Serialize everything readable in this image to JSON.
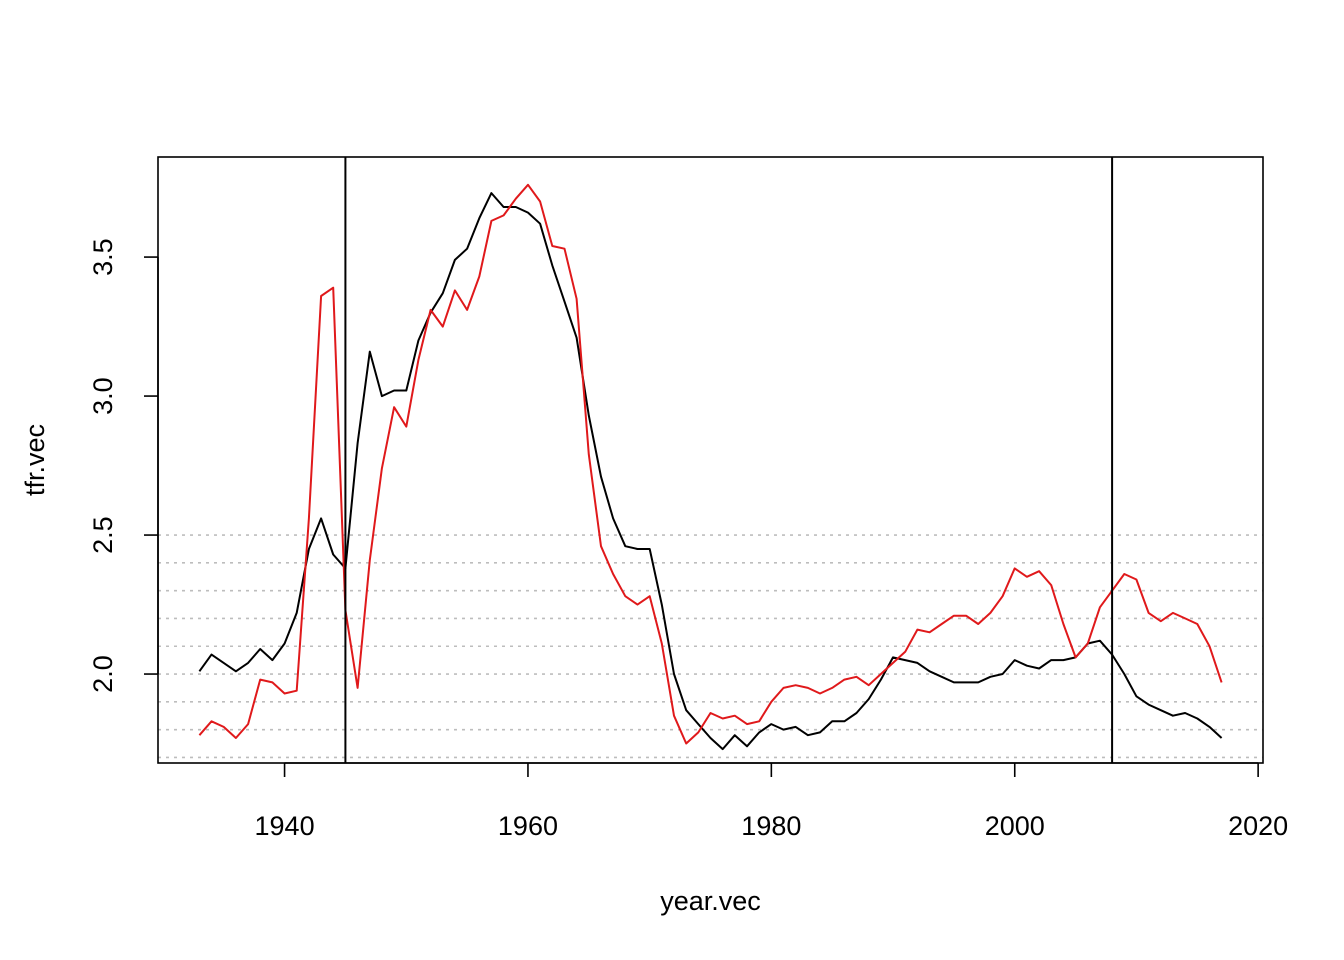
{
  "chart_data": {
    "type": "line",
    "title": "",
    "xlabel": "year.vec",
    "ylabel": "tfr.vec",
    "xlim": [
      1929.6,
      2020.4
    ],
    "ylim": [
      1.68,
      3.86
    ],
    "x_ticks": [
      1940,
      1960,
      1980,
      2000,
      2020
    ],
    "y_ticks": [
      2.0,
      2.5,
      3.0,
      3.5
    ],
    "x_tick_labels": [
      "1940",
      "1960",
      "1980",
      "2000",
      "2020"
    ],
    "y_tick_labels": [
      "2.0",
      "2.5",
      "3.0",
      "3.5"
    ],
    "hlines": [
      1.7,
      1.8,
      1.9,
      2.0,
      2.1,
      2.2,
      2.3,
      2.4,
      2.5
    ],
    "vlines": [
      1945,
      2008
    ],
    "grid": false,
    "x": [
      1933,
      1934,
      1935,
      1936,
      1937,
      1938,
      1939,
      1940,
      1941,
      1942,
      1943,
      1944,
      1945,
      1946,
      1947,
      1948,
      1949,
      1950,
      1951,
      1952,
      1953,
      1954,
      1955,
      1956,
      1957,
      1958,
      1959,
      1960,
      1961,
      1962,
      1963,
      1964,
      1965,
      1966,
      1967,
      1968,
      1969,
      1970,
      1971,
      1972,
      1973,
      1974,
      1975,
      1976,
      1977,
      1978,
      1979,
      1980,
      1981,
      1982,
      1983,
      1984,
      1985,
      1986,
      1987,
      1988,
      1989,
      1990,
      1991,
      1992,
      1993,
      1994,
      1995,
      1996,
      1997,
      1998,
      1999,
      2000,
      2001,
      2002,
      2003,
      2004,
      2005,
      2006,
      2007,
      2008,
      2009,
      2010,
      2011,
      2012,
      2013,
      2014,
      2015,
      2016,
      2017
    ],
    "series": [
      {
        "color": "#000000",
        "values": [
          2.01,
          2.07,
          2.04,
          2.01,
          2.04,
          2.09,
          2.05,
          2.11,
          2.22,
          2.45,
          2.56,
          2.43,
          2.38,
          2.83,
          3.16,
          3.0,
          3.02,
          3.02,
          3.2,
          3.3,
          3.37,
          3.49,
          3.53,
          3.64,
          3.73,
          3.68,
          3.68,
          3.66,
          3.62,
          3.47,
          3.34,
          3.21,
          2.93,
          2.71,
          2.56,
          2.46,
          2.45,
          2.45,
          2.25,
          2.0,
          1.87,
          1.82,
          1.77,
          1.73,
          1.78,
          1.74,
          1.79,
          1.82,
          1.8,
          1.81,
          1.78,
          1.79,
          1.83,
          1.83,
          1.86,
          1.91,
          1.98,
          2.06,
          2.05,
          2.04,
          2.01,
          1.99,
          1.97,
          1.97,
          1.97,
          1.99,
          2.0,
          2.05,
          2.03,
          2.02,
          2.05,
          2.05,
          2.06,
          2.11,
          2.12,
          2.07,
          2.0,
          1.92,
          1.89,
          1.87,
          1.85,
          1.86,
          1.84,
          1.81,
          1.77
        ]
      },
      {
        "color": "#e0191b",
        "values": [
          1.78,
          1.83,
          1.81,
          1.77,
          1.82,
          1.98,
          1.97,
          1.93,
          1.94,
          2.56,
          3.36,
          3.39,
          2.23,
          1.95,
          2.41,
          2.74,
          2.96,
          2.89,
          3.13,
          3.31,
          3.25,
          3.38,
          3.31,
          3.43,
          3.63,
          3.65,
          3.71,
          3.76,
          3.7,
          3.54,
          3.53,
          3.35,
          2.79,
          2.46,
          2.36,
          2.28,
          2.25,
          2.28,
          2.11,
          1.85,
          1.75,
          1.79,
          1.86,
          1.84,
          1.85,
          1.82,
          1.83,
          1.9,
          1.95,
          1.96,
          1.95,
          1.93,
          1.95,
          1.98,
          1.99,
          1.96,
          2.0,
          2.04,
          2.08,
          2.16,
          2.15,
          2.18,
          2.21,
          2.21,
          2.18,
          2.22,
          2.28,
          2.38,
          2.35,
          2.37,
          2.32,
          2.18,
          2.06,
          2.11,
          2.24,
          2.3,
          2.36,
          2.34,
          2.22,
          2.19,
          2.22,
          2.2,
          2.18,
          2.1,
          1.97
        ]
      }
    ]
  }
}
